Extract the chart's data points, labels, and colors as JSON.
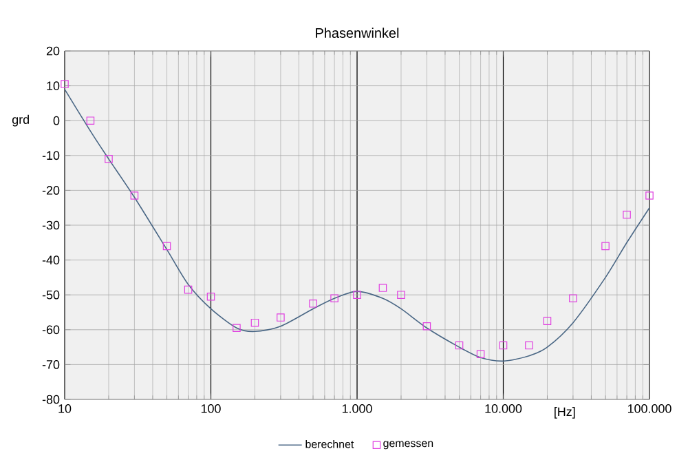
{
  "chart_data": {
    "type": "line",
    "title": "Phasenwinkel",
    "xlabel": "[Hz]",
    "ylabel": "grd",
    "log": "x",
    "grid": true,
    "legend": "bottom",
    "xlim": [
      10,
      100000
    ],
    "ylim": [
      -80,
      20
    ],
    "xticks": [
      10,
      100,
      {
        "value": 1000,
        "label": "1.000"
      },
      {
        "value": 10000,
        "label": "10.000"
      },
      {
        "value": 100000,
        "label": "100.000"
      }
    ],
    "yticks": [
      -80,
      -70,
      -60,
      -50,
      -40,
      -30,
      -20,
      -10,
      0,
      10,
      20
    ],
    "series": [
      {
        "name": "berechnet",
        "color": "#4a6785",
        "marker": "none",
        "line_style": "solid",
        "x": [
          10,
          15,
          20,
          30,
          50,
          70,
          100,
          150,
          200,
          300,
          500,
          700,
          1000,
          1500,
          2000,
          3000,
          5000,
          7000,
          10000,
          15000,
          20000,
          30000,
          50000,
          70000,
          100000
        ],
        "values": [
          9,
          -3,
          -11,
          -22,
          -37,
          -47,
          -54,
          -59.5,
          -60.5,
          -59,
          -54,
          -51,
          -49,
          -51,
          -54,
          -59.5,
          -65,
          -68,
          -69,
          -67.5,
          -65,
          -58,
          -45,
          -35,
          -25
        ]
      },
      {
        "name": "gemessen",
        "type": "scatter",
        "color": "#e040e0",
        "marker": "square",
        "x": [
          10,
          15,
          20,
          30,
          50,
          70,
          100,
          150,
          200,
          300,
          500,
          700,
          1000,
          1500,
          2000,
          3000,
          5000,
          7000,
          10000,
          15000,
          20000,
          30000,
          50000,
          70000,
          100000
        ],
        "values": [
          10.5,
          0,
          -11,
          -21.5,
          -36,
          -48.5,
          -50.5,
          -59.5,
          -58,
          -56.5,
          -52.5,
          -51,
          -50,
          -48,
          -50,
          -59,
          -64.5,
          -67,
          -64.5,
          -64.5,
          -57.5,
          -51,
          -36,
          -27,
          -21.5
        ]
      }
    ]
  }
}
